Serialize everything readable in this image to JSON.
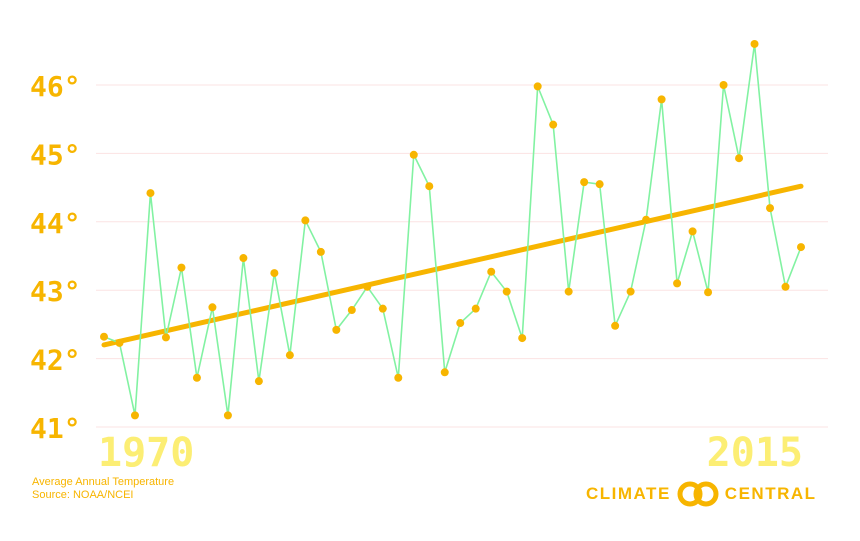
{
  "colors": {
    "accent": "#f7b500",
    "line": "#82f2a2",
    "trend": "#f7b500",
    "grid": "#fbe3e3",
    "year_label": "#fcee74",
    "brand": "#f7b500"
  },
  "chart_data": {
    "type": "line",
    "title": "",
    "xlabel": "",
    "ylabel": "",
    "xlim": [
      1970,
      2015
    ],
    "ylim": [
      41,
      46
    ],
    "ytick_labels": [
      "41°",
      "42°",
      "43°",
      "44°",
      "45°",
      "46°"
    ],
    "ytick_values": [
      41,
      42,
      43,
      44,
      45,
      46
    ],
    "x_start_label": "1970",
    "x_end_label": "2015",
    "grid": true,
    "x": [
      1970,
      1971,
      1972,
      1973,
      1974,
      1975,
      1976,
      1977,
      1978,
      1979,
      1980,
      1981,
      1982,
      1983,
      1984,
      1985,
      1986,
      1987,
      1988,
      1989,
      1990,
      1991,
      1992,
      1993,
      1994,
      1995,
      1996,
      1997,
      1998,
      1999,
      2000,
      2001,
      2002,
      2003,
      2004,
      2005,
      2006,
      2007,
      2008,
      2009,
      2010,
      2011,
      2012,
      2013,
      2014,
      2015
    ],
    "series": [
      {
        "values": [
          42.32,
          42.23,
          41.17,
          44.42,
          42.31,
          43.33,
          41.72,
          42.75,
          41.17,
          43.47,
          41.67,
          43.25,
          42.05,
          44.02,
          43.56,
          42.42,
          42.71,
          43.05,
          42.73,
          41.72,
          44.98,
          44.52,
          41.8,
          42.52,
          42.73,
          43.27,
          42.98,
          42.3,
          45.98,
          45.42,
          42.98,
          44.58,
          44.55,
          42.48,
          42.98,
          44.03,
          45.79,
          43.1,
          43.86,
          42.97,
          46.0,
          44.93,
          46.6,
          44.2,
          43.05,
          43.63
        ]
      }
    ],
    "trend": {
      "start": [
        1970,
        42.2
      ],
      "end": [
        2015,
        44.52
      ]
    }
  },
  "notes": {
    "line1": "Average Annual Temperature",
    "line2": "Source: NOAA/NCEI"
  },
  "brand": {
    "left": "CLIMATE",
    "right": "CENTRAL",
    "logo_icon": "climate-central-logo-icon"
  }
}
